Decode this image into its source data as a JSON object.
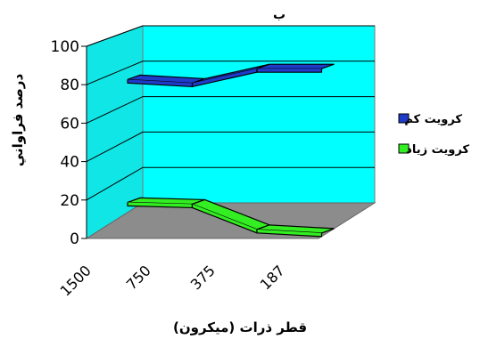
{
  "chart_data": {
    "type": "line",
    "style": "3d-ribbon",
    "title": "ب",
    "xlabel": "قطر ذرات  (ميكرون)",
    "ylabel": "درصد فراواني",
    "categories": [
      "1500",
      "750",
      "375",
      "187"
    ],
    "ylim": [
      0,
      100
    ],
    "yticks": [
      "0",
      "20",
      "40",
      "60",
      "80",
      "100"
    ],
    "grid": true,
    "legend_position": "right",
    "series": [
      {
        "name": "كرويت كم",
        "values": [
          88,
          86,
          94,
          94
        ],
        "color": "#1f3cc8"
      },
      {
        "name": "كرويت زياد",
        "values": [
          20,
          19,
          5,
          3
        ],
        "color": "#33ee22"
      }
    ],
    "colors": {
      "back_wall": "#00ffff",
      "side_wall": "#11e6e6",
      "floor": "#8c8c8c"
    }
  }
}
